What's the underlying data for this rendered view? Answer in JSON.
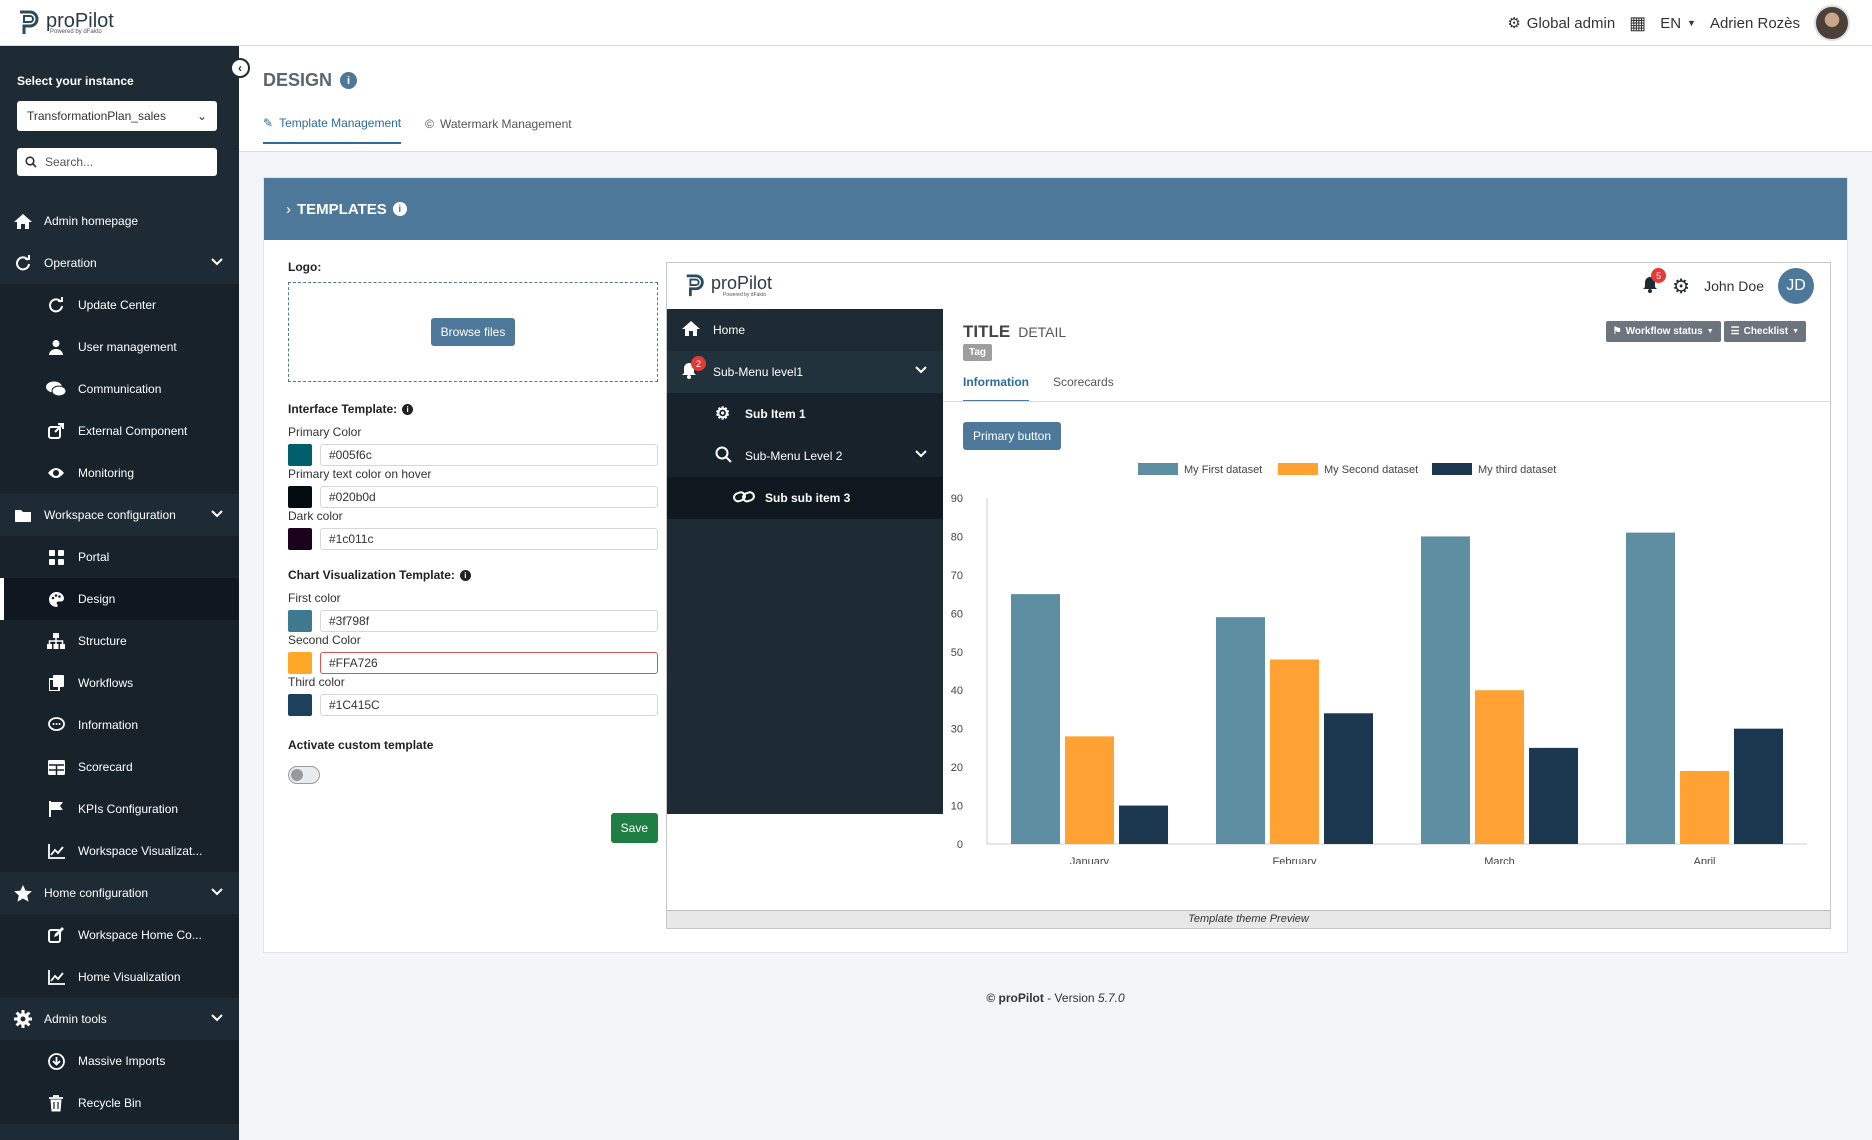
{
  "app": {
    "brand": "proPilot",
    "brand_sub": "Powered by dFakto",
    "role": "Global admin",
    "language": "EN",
    "user": "Adrien Rozès"
  },
  "sidebar": {
    "instance_label": "Select your instance",
    "instance_value": "TransformationPlan_sales",
    "search_placeholder": "Search...",
    "items": [
      {
        "label": "Admin homepage",
        "icon": "home-icon",
        "level": "top"
      },
      {
        "label": "Operation",
        "icon": "refresh-icon",
        "level": "top",
        "expand": true
      },
      {
        "label": "Update Center",
        "icon": "refresh-icon",
        "level": "sub"
      },
      {
        "label": "User management",
        "icon": "user-icon",
        "level": "sub"
      },
      {
        "label": "Communication",
        "icon": "comments-icon",
        "level": "sub"
      },
      {
        "label": "External Component",
        "icon": "external-icon",
        "level": "sub"
      },
      {
        "label": "Monitoring",
        "icon": "eye-icon",
        "level": "sub"
      },
      {
        "label": "Workspace configuration",
        "icon": "folder-icon",
        "level": "top",
        "expand": true
      },
      {
        "label": "Portal",
        "icon": "grid-icon",
        "level": "sub"
      },
      {
        "label": "Design",
        "icon": "palette-icon",
        "level": "sub",
        "active": true
      },
      {
        "label": "Structure",
        "icon": "sitemap-icon",
        "level": "sub"
      },
      {
        "label": "Workflows",
        "icon": "copy-icon",
        "level": "sub"
      },
      {
        "label": "Information",
        "icon": "comment-icon",
        "level": "sub"
      },
      {
        "label": "Scorecard",
        "icon": "table-icon",
        "level": "sub"
      },
      {
        "label": "KPIs Configuration",
        "icon": "flag-icon",
        "level": "sub"
      },
      {
        "label": "Workspace Visualizat...",
        "icon": "chart-line-icon",
        "level": "sub"
      },
      {
        "label": "Home configuration",
        "icon": "star-icon",
        "level": "top",
        "expand": true
      },
      {
        "label": "Workspace Home Co...",
        "icon": "edit-icon",
        "level": "sub"
      },
      {
        "label": "Home Visualization",
        "icon": "chart-line-icon",
        "level": "sub"
      },
      {
        "label": "Admin tools",
        "icon": "gear-icon",
        "level": "top",
        "expand": true
      },
      {
        "label": "Massive Imports",
        "icon": "download-icon",
        "level": "sub"
      },
      {
        "label": "Recycle Bin",
        "icon": "trash-icon",
        "level": "sub"
      }
    ]
  },
  "page": {
    "title": "DESIGN",
    "tabs": [
      "Template Management",
      "Watermark Management"
    ],
    "panel_title": "TEMPLATES"
  },
  "form": {
    "logo_label": "Logo:",
    "browse_label": "Browse files",
    "interface_label": "Interface Template:",
    "primary_label": "Primary Color",
    "primary_value": "#005f6c",
    "hover_label": "Primary text color on hover",
    "hover_value": "#020b0d",
    "dark_label": "Dark color",
    "dark_value": "#1c011c",
    "chart_label": "Chart Visualization Template:",
    "first_label": "First color",
    "first_value": "#3f798f",
    "second_label": "Second Color",
    "second_value": "#FFA726",
    "third_label": "Third color",
    "third_value": "#1C415C",
    "activate_label": "Activate custom template",
    "save_label": "Save"
  },
  "preview": {
    "brand": "proPilot",
    "brand_sub": "Powered by dFakto",
    "notif_count": "5",
    "user": "John Doe",
    "initials": "JD",
    "menu": {
      "home": "Home",
      "sub1": "Sub-Menu level1",
      "sub1_badge": "2",
      "subitem1": "Sub Item 1",
      "sub2": "Sub-Menu Level 2",
      "subsub3": "Sub sub item 3"
    },
    "title": "TITLE",
    "detail": "DETAIL",
    "tag": "Tag",
    "workflow_btn": "Workflow status",
    "checklist_btn": "Checklist",
    "tabs": [
      "Information",
      "Scorecards"
    ],
    "primary_button": "Primary button",
    "caption": "Template theme Preview"
  },
  "chart_data": {
    "type": "bar",
    "categories": [
      "January",
      "February",
      "March",
      "April"
    ],
    "series": [
      {
        "name": "My First dataset",
        "color": "#5e8ea1",
        "values": [
          65,
          59,
          80,
          81
        ]
      },
      {
        "name": "My Second dataset",
        "color": "#ffa233",
        "values": [
          28,
          48,
          40,
          19
        ]
      },
      {
        "name": "My third dataset",
        "color": "#1c3750",
        "values": [
          10,
          34,
          25,
          30
        ]
      }
    ],
    "ylim": [
      0,
      90
    ],
    "yticks": [
      0,
      10,
      20,
      30,
      40,
      50,
      60,
      70,
      80,
      90
    ],
    "title": "",
    "xlabel": "",
    "ylabel": "",
    "legend": "top"
  },
  "footer": {
    "brand": "© proPilot",
    "version_prefix": " - Version ",
    "version": "5.7.0"
  }
}
